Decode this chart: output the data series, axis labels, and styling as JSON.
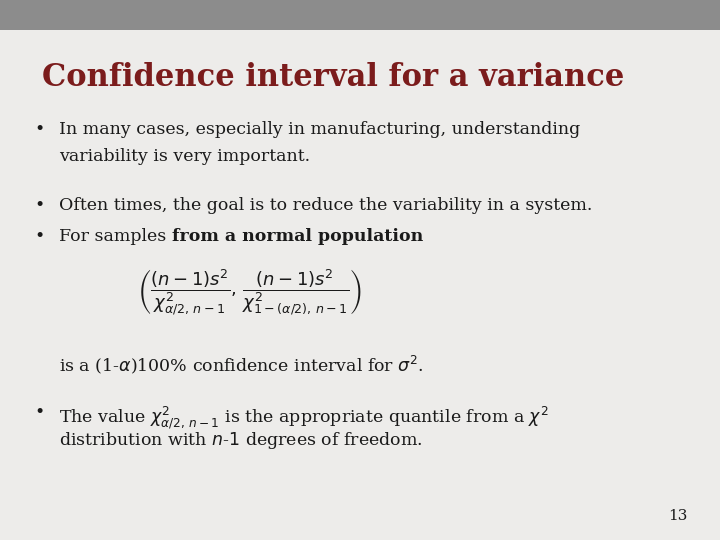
{
  "title": "Confidence interval for a variance",
  "title_color": "#7B1C1C",
  "title_fontsize": 22,
  "background_color": "#EDECEA",
  "header_bar_color": "#8C8C8C",
  "header_bar_height": 0.055,
  "slide_number": "13",
  "bullet1_line1": "In many cases, especially in manufacturing, understanding",
  "bullet1_line2": "variability is very important.",
  "bullet2": "Often times, the goal is to reduce the variability in a system.",
  "bullet3_prefix": "For samples ",
  "bullet3_bold": "from a normal population",
  "formula_note": "is a (1-α)100% confidence interval for σ².",
  "bullet4_line1": "The value χ²α/2, n−1 is the appropriate quantile from a χ²",
  "bullet4_line2": "distribution with n-1 degrees of freedom.",
  "text_color": "#1a1a1a",
  "text_fontsize": 12.5,
  "formula_fontsize": 13,
  "slide_num_fontsize": 11
}
